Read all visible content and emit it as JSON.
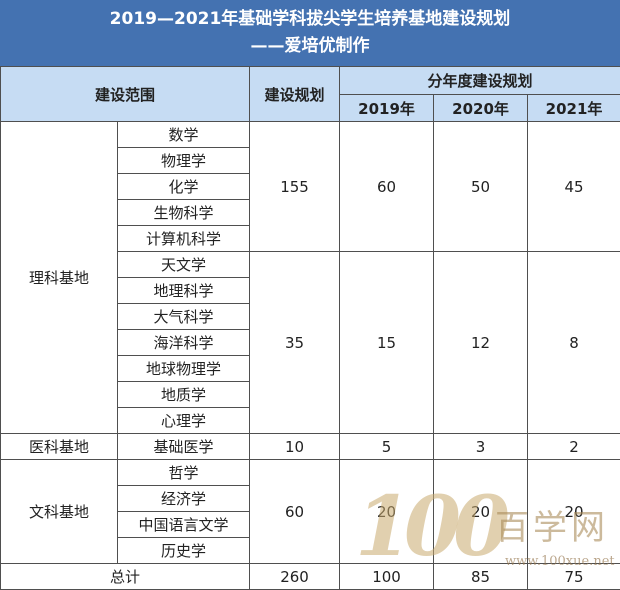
{
  "title": {
    "line1": "2019—2021年基础学科拔尖学生培养基地建设规划",
    "line2": "——爱培优制作"
  },
  "headers": {
    "scope": "建设范围",
    "plan": "建设规划",
    "annual": "分年度建设规划",
    "years": [
      "2019年",
      "2020年",
      "2021年"
    ]
  },
  "groups": [
    {
      "category": "理科基地",
      "blocks": [
        {
          "subjects": [
            "数学",
            "物理学",
            "化学",
            "生物科学",
            "计算机科学"
          ],
          "plan": "155",
          "y2019": "60",
          "y2020": "50",
          "y2021": "45"
        },
        {
          "subjects": [
            "天文学",
            "地理科学",
            "大气科学",
            "海洋科学",
            "地球物理学",
            "地质学",
            "心理学"
          ],
          "plan": "35",
          "y2019": "15",
          "y2020": "12",
          "y2021": "8"
        }
      ]
    },
    {
      "category": "医科基地",
      "blocks": [
        {
          "subjects": [
            "基础医学"
          ],
          "plan": "10",
          "y2019": "5",
          "y2020": "3",
          "y2021": "2"
        }
      ]
    },
    {
      "category": "文科基地",
      "blocks": [
        {
          "subjects": [
            "哲学",
            "经济学",
            "中国语言文学",
            "历史学"
          ],
          "plan": "60",
          "y2019": "20",
          "y2020": "20",
          "y2021": "20"
        }
      ]
    }
  ],
  "total": {
    "label": "总计",
    "plan": "260",
    "y2019": "100",
    "y2020": "85",
    "y2021": "75"
  },
  "watermark": {
    "digits": "100",
    "text": "百学网",
    "url": "www.100xue.net"
  }
}
